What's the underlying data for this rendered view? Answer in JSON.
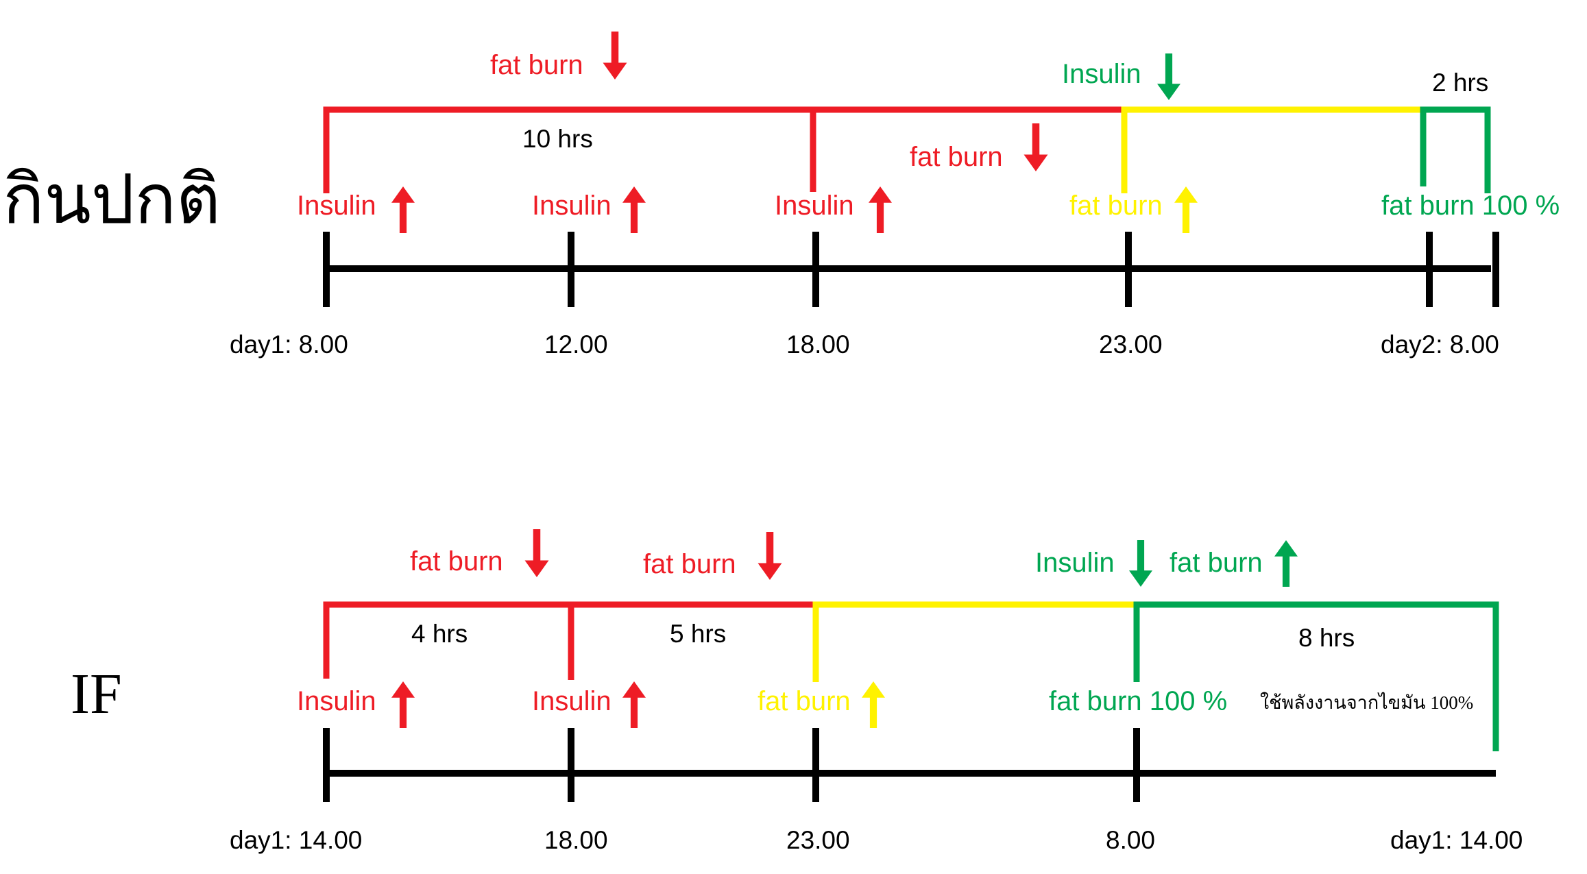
{
  "colors": {
    "red": "#ee1c25",
    "yellow": "#fff200",
    "green": "#00a651",
    "black": "#000000"
  },
  "normal": {
    "title": "กินปกติ",
    "times": [
      "day1: 8.00",
      "12.00",
      "18.00",
      "23.00",
      "day2:   8.00"
    ],
    "durations": [
      "10 hrs",
      "2 hrs"
    ],
    "labels": {
      "insulin_up": "Insulin",
      "fat_burn_down": "fat burn",
      "insulin_down": "Insulin",
      "fat_burn_up": "fat burn",
      "fat_burn_full": "fat burn 100 %"
    },
    "icons": {
      "up": "arrow-up-icon",
      "down": "arrow-down-icon"
    }
  },
  "if": {
    "title": "IF",
    "times": [
      "day1: 14.00",
      "18.00",
      "23.00",
      "8.00",
      "day1: 14.00"
    ],
    "durations": [
      "4 hrs",
      "5 hrs",
      "8 hrs"
    ],
    "labels": {
      "insulin_up": "Insulin",
      "fat_burn_down": "fat burn",
      "insulin_down": "Insulin",
      "fat_burn_up": "fat burn",
      "fat_burn_full": "fat burn 100 %",
      "fat_energy_note": "ใช้พลังงานจากไขมัน 100%"
    }
  }
}
